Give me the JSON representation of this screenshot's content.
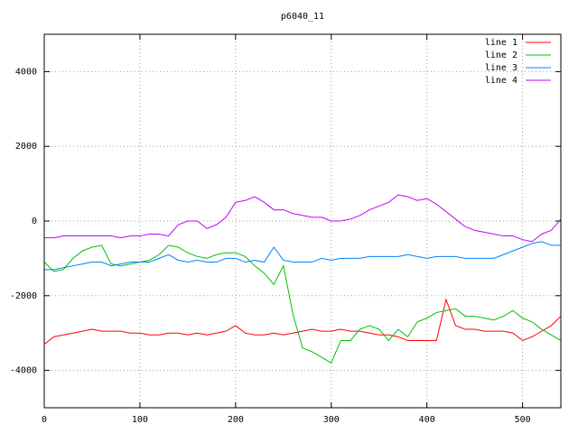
{
  "chart_data": {
    "type": "line",
    "title": "p6040_11",
    "x": [
      0,
      10,
      20,
      30,
      40,
      50,
      60,
      70,
      80,
      90,
      100,
      110,
      120,
      130,
      140,
      150,
      160,
      170,
      180,
      190,
      200,
      210,
      220,
      230,
      240,
      250,
      260,
      270,
      280,
      290,
      300,
      310,
      320,
      330,
      340,
      350,
      360,
      370,
      380,
      390,
      400,
      410,
      420,
      430,
      440,
      450,
      460,
      470,
      480,
      490,
      500,
      510,
      520,
      530,
      540
    ],
    "series": [
      {
        "name": "line 1",
        "color": "#ff0000",
        "values": [
          -3300,
          -3100,
          -3050,
          -3000,
          -2950,
          -2900,
          -2950,
          -2950,
          -2950,
          -3000,
          -3000,
          -3050,
          -3050,
          -3000,
          -3000,
          -3050,
          -3000,
          -3050,
          -3000,
          -2950,
          -2800,
          -3000,
          -3050,
          -3050,
          -3000,
          -3050,
          -3000,
          -2950,
          -2900,
          -2950,
          -2950,
          -2900,
          -2950,
          -2950,
          -3000,
          -3050,
          -3050,
          -3100,
          -3200,
          -3200,
          -3200,
          -3200,
          -2100,
          -2800,
          -2900,
          -2900,
          -2950,
          -2950,
          -2950,
          -3000,
          -3200,
          -3100,
          -2950,
          -2800,
          -2550
        ]
      },
      {
        "name": "line 2",
        "color": "#00c000",
        "values": [
          -1100,
          -1350,
          -1300,
          -1000,
          -800,
          -700,
          -650,
          -1150,
          -1200,
          -1150,
          -1100,
          -1050,
          -900,
          -650,
          -700,
          -850,
          -950,
          -1000,
          -900,
          -850,
          -850,
          -950,
          -1200,
          -1400,
          -1700,
          -1200,
          -2500,
          -3400,
          -3500,
          -3650,
          -3800,
          -3200,
          -3200,
          -2900,
          -2800,
          -2900,
          -3200,
          -2900,
          -3100,
          -2700,
          -2600,
          -2450,
          -2400,
          -2350,
          -2550,
          -2550,
          -2600,
          -2650,
          -2550,
          -2400,
          -2600,
          -2700,
          -2900,
          -3050,
          -3200
        ]
      },
      {
        "name": "line 3",
        "color": "#0080ff",
        "values": [
          -1300,
          -1300,
          -1250,
          -1200,
          -1150,
          -1100,
          -1100,
          -1200,
          -1150,
          -1100,
          -1100,
          -1100,
          -1000,
          -900,
          -1050,
          -1100,
          -1050,
          -1100,
          -1100,
          -1000,
          -1000,
          -1100,
          -1050,
          -1100,
          -700,
          -1050,
          -1100,
          -1100,
          -1100,
          -1000,
          -1050,
          -1000,
          -1000,
          -1000,
          -950,
          -950,
          -950,
          -950,
          -900,
          -950,
          -1000,
          -950,
          -950,
          -950,
          -1000,
          -1000,
          -1000,
          -1000,
          -900,
          -800,
          -700,
          -600,
          -550,
          -650,
          -650
        ]
      },
      {
        "name": "line 4",
        "color": "#c000ff",
        "values": [
          -450,
          -450,
          -400,
          -400,
          -400,
          -400,
          -400,
          -400,
          -450,
          -400,
          -400,
          -350,
          -350,
          -400,
          -100,
          0,
          0,
          -200,
          -100,
          100,
          500,
          550,
          650,
          500,
          300,
          300,
          200,
          150,
          100,
          100,
          0,
          0,
          50,
          150,
          300,
          400,
          500,
          700,
          650,
          550,
          600,
          450,
          250,
          50,
          -150,
          -250,
          -300,
          -350,
          -400,
          -400,
          -500,
          -550,
          -350,
          -250,
          50
        ]
      }
    ],
    "xlim": [
      0,
      540
    ],
    "xticks": [
      0,
      100,
      200,
      300,
      400,
      500
    ],
    "ylim": [
      -5000,
      5000
    ],
    "yticks": [
      -4000,
      -2000,
      0,
      2000,
      4000
    ],
    "grid": true,
    "legend": "top-right"
  }
}
